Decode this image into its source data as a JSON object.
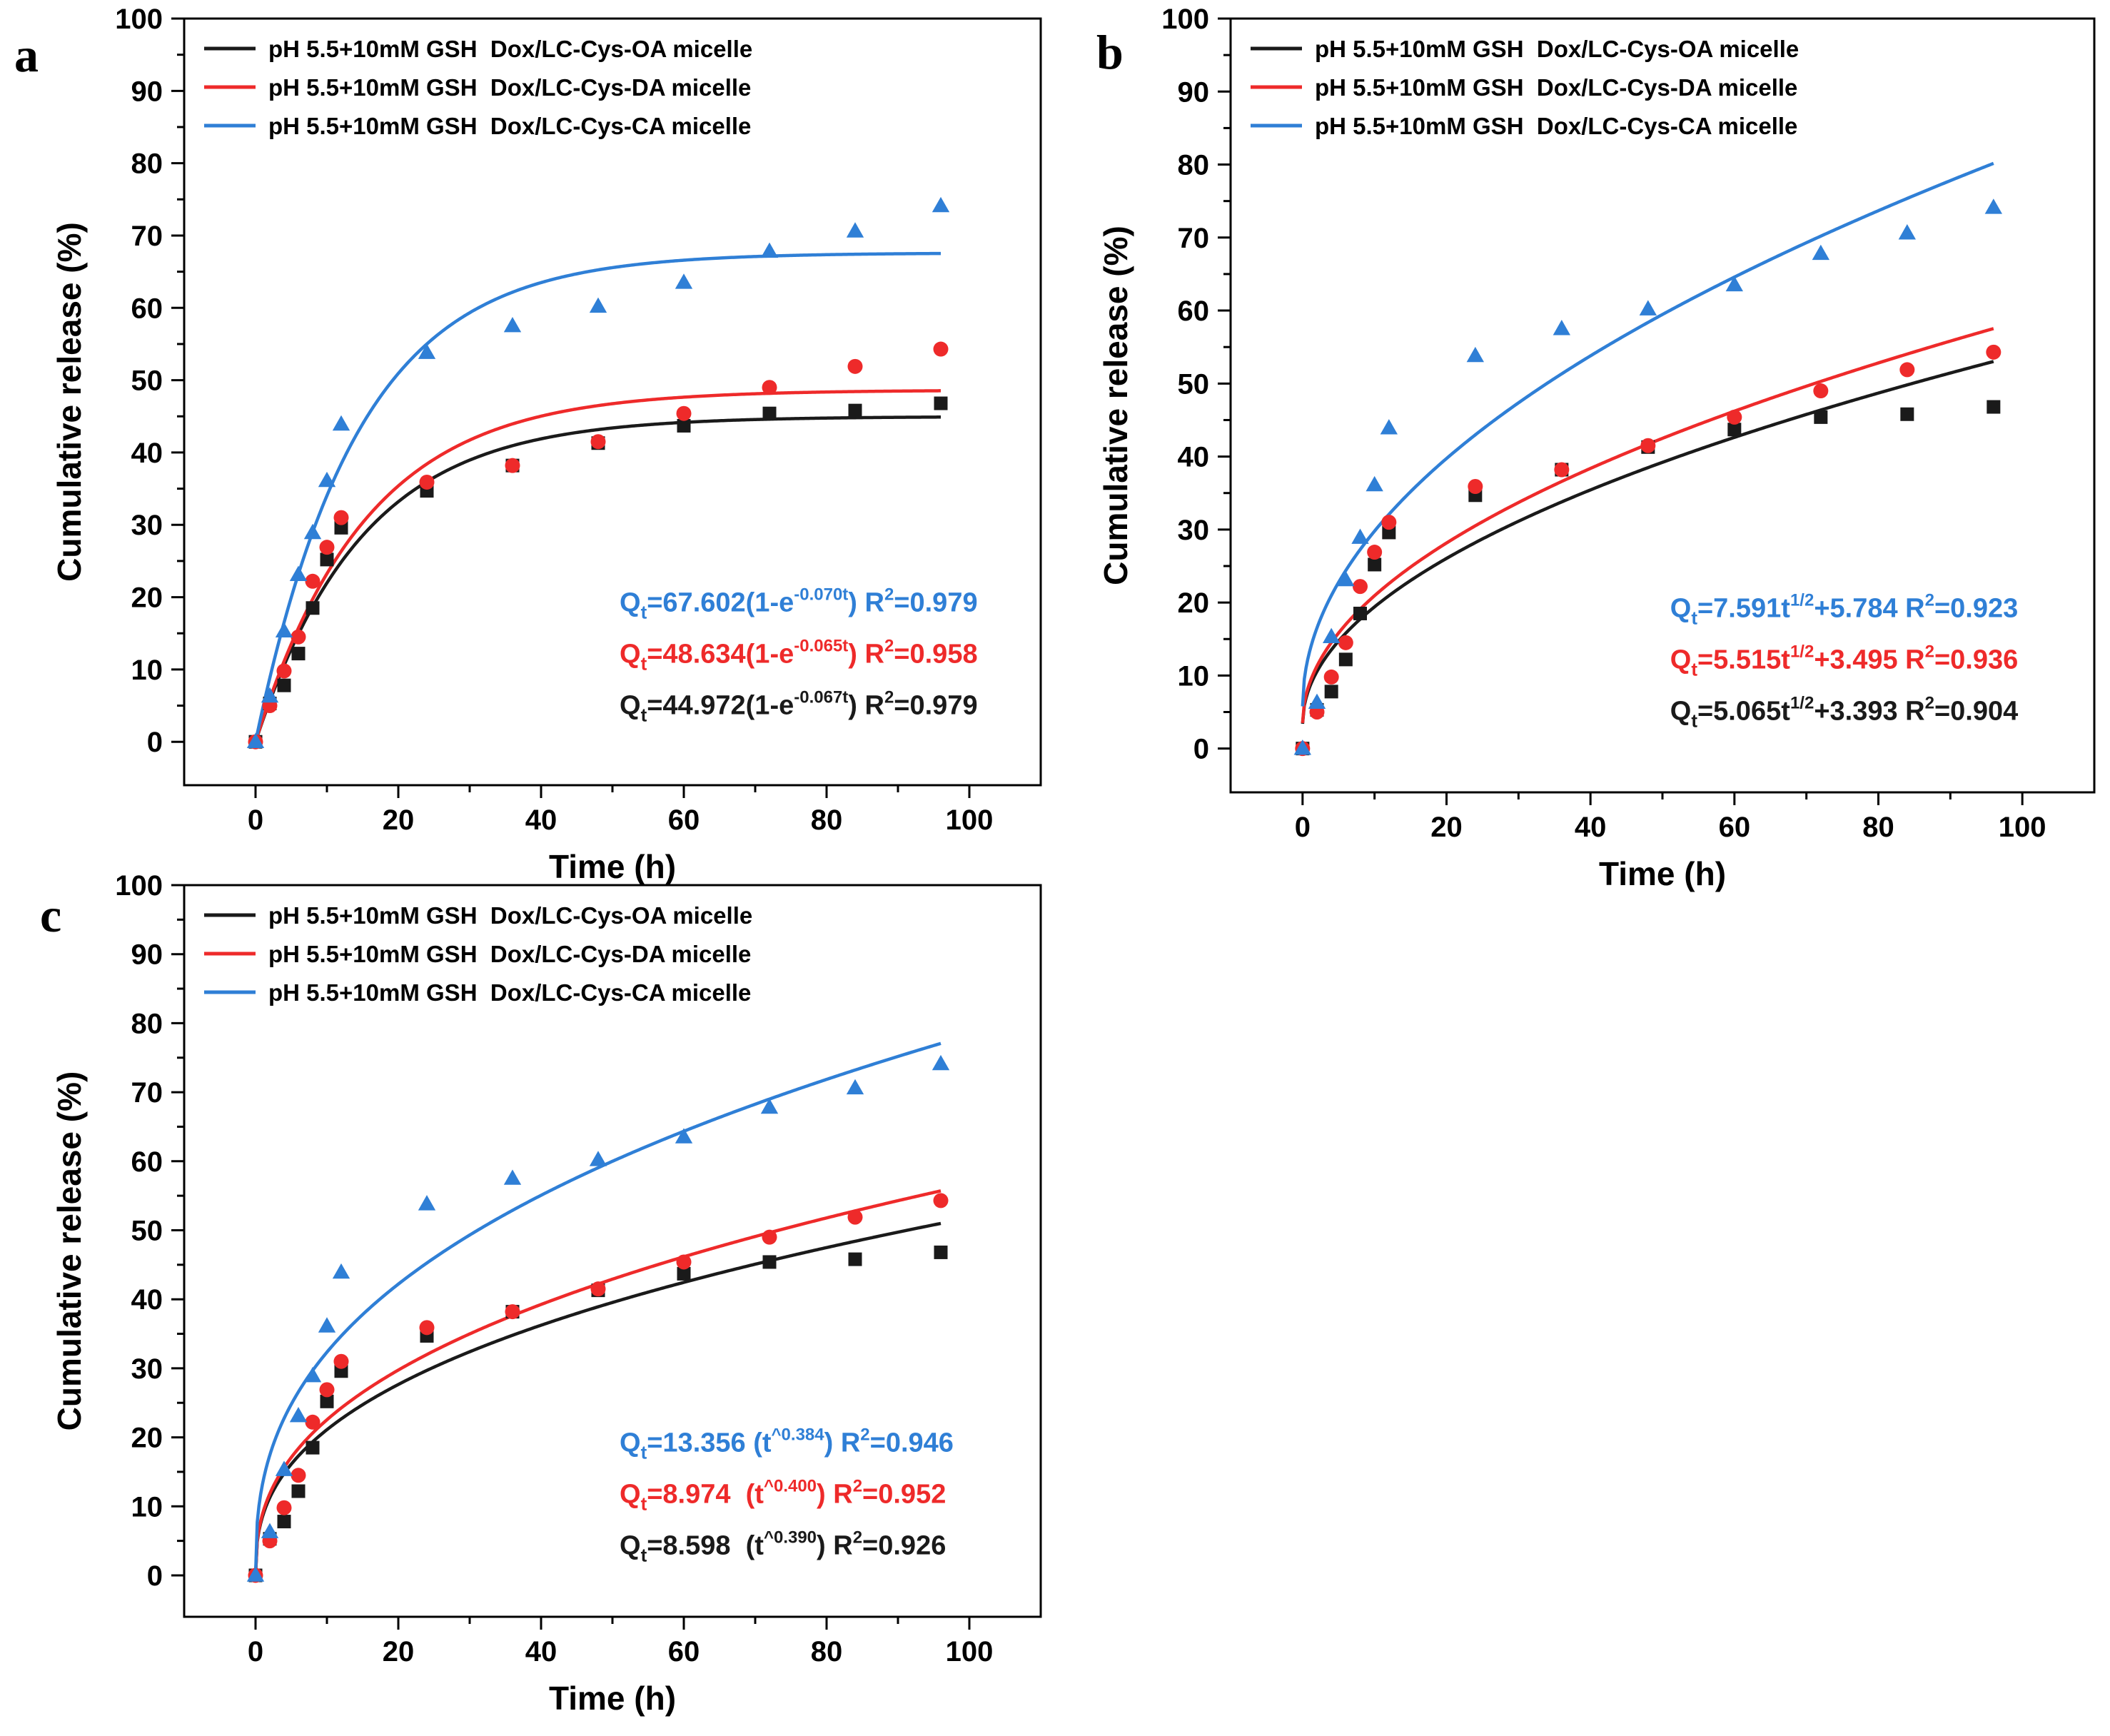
{
  "figure": {
    "colors": {
      "OA": "#1a1a1a",
      "DA": "#ee2a2a",
      "CA": "#2f7fd6"
    }
  },
  "chart_data": [
    {
      "panel": "a",
      "type": "scatter",
      "model": "first-order",
      "xlabel": "Time (h)",
      "ylabel": "Cumulative release (%)",
      "xlim": [
        -10,
        110
      ],
      "ylim": [
        -6,
        100
      ],
      "xticks": [
        0,
        20,
        40,
        60,
        80,
        100
      ],
      "yticks": [
        0,
        10,
        20,
        30,
        40,
        50,
        60,
        70,
        80,
        90,
        100
      ],
      "legend_position": "top-left",
      "series": [
        {
          "key": "OA",
          "name": "pH 5.5+10mM GSH  Dox/LC-Cys-OA micelle",
          "marker": "square",
          "x": [
            0,
            2,
            4,
            6,
            8,
            10,
            12,
            24,
            36,
            48,
            60,
            72,
            84,
            96
          ],
          "y": [
            0,
            5.3,
            7.8,
            12.2,
            18.5,
            25.2,
            29.6,
            34.7,
            38.2,
            41.3,
            43.7,
            45.4,
            45.8,
            46.8
          ],
          "fit": {
            "a": 44.972,
            "k": 0.067
          }
        },
        {
          "key": "DA",
          "name": "pH 5.5+10mM GSH  Dox/LC-Cys-DA micelle",
          "marker": "circle",
          "x": [
            0,
            2,
            4,
            6,
            8,
            10,
            12,
            24,
            36,
            48,
            60,
            72,
            84,
            96
          ],
          "y": [
            0,
            5.0,
            9.8,
            14.5,
            22.2,
            26.9,
            31.0,
            35.9,
            38.2,
            41.5,
            45.4,
            49.0,
            51.9,
            54.3
          ],
          "fit": {
            "a": 48.634,
            "k": 0.065
          }
        },
        {
          "key": "CA",
          "name": "pH 5.5+10mM GSH  Dox/LC-Cys-CA micelle",
          "marker": "triangle",
          "x": [
            0,
            2,
            4,
            6,
            8,
            10,
            12,
            24,
            36,
            48,
            60,
            72,
            84,
            96
          ],
          "y": [
            0,
            6.3,
            15.3,
            23.1,
            28.9,
            36.1,
            43.9,
            53.8,
            57.5,
            60.2,
            63.5,
            67.8,
            70.6,
            74.1
          ],
          "fit": {
            "a": 67.602,
            "k": 0.07
          }
        }
      ],
      "equations": [
        {
          "key": "CA",
          "q": "Q",
          "sub": "t",
          "pre": "=67.602(1-e",
          "sup": "-0.070t",
          "post": ") R",
          "r2sup": "2",
          "r2": "=0.979"
        },
        {
          "key": "DA",
          "q": "Q",
          "sub": "t",
          "pre": "=48.634(1-e",
          "sup": "-0.065t",
          "post": ") R",
          "r2sup": "2",
          "r2": "=0.958"
        },
        {
          "key": "OA",
          "q": "Q",
          "sub": "t",
          "pre": "=44.972(1-e",
          "sup": "-0.067t",
          "post": ") R",
          "r2sup": "2",
          "r2": "=0.979"
        }
      ]
    },
    {
      "panel": "b",
      "type": "scatter",
      "model": "higuchi",
      "xlabel": "Time (h)",
      "ylabel": "Cumulative release (%)",
      "xlim": [
        -10,
        110
      ],
      "ylim": [
        -6,
        100
      ],
      "xticks": [
        0,
        20,
        40,
        60,
        80,
        100
      ],
      "yticks": [
        0,
        10,
        20,
        30,
        40,
        50,
        60,
        70,
        80,
        90,
        100
      ],
      "legend_position": "top-left",
      "series": [
        {
          "key": "OA",
          "name": "pH 5.5+10mM GSH  Dox/LC-Cys-OA micelle",
          "marker": "square",
          "x": [
            0,
            2,
            4,
            6,
            8,
            10,
            12,
            24,
            36,
            48,
            60,
            72,
            84,
            96
          ],
          "y": [
            0,
            5.3,
            7.8,
            12.2,
            18.5,
            25.2,
            29.6,
            34.7,
            38.2,
            41.3,
            43.7,
            45.4,
            45.8,
            46.8
          ],
          "fit": {
            "a": 5.065,
            "b": 3.393
          }
        },
        {
          "key": "DA",
          "name": "pH 5.5+10mM GSH  Dox/LC-Cys-DA micelle",
          "marker": "circle",
          "x": [
            0,
            2,
            4,
            6,
            8,
            10,
            12,
            24,
            36,
            48,
            60,
            72,
            84,
            96
          ],
          "y": [
            0,
            5.0,
            9.8,
            14.5,
            22.2,
            26.9,
            31.0,
            35.9,
            38.2,
            41.5,
            45.4,
            49.0,
            51.9,
            54.3
          ],
          "fit": {
            "a": 5.515,
            "b": 3.495
          }
        },
        {
          "key": "CA",
          "name": "pH 5.5+10mM GSH  Dox/LC-Cys-CA micelle",
          "marker": "triangle",
          "x": [
            0,
            2,
            4,
            6,
            8,
            10,
            12,
            24,
            36,
            48,
            60,
            72,
            84,
            96
          ],
          "y": [
            0,
            6.3,
            15.3,
            23.1,
            28.9,
            36.1,
            43.9,
            53.8,
            57.5,
            60.2,
            63.5,
            67.8,
            70.6,
            74.1
          ],
          "fit": {
            "a": 7.591,
            "b": 5.784
          }
        }
      ],
      "equations": [
        {
          "key": "CA",
          "q": "Q",
          "sub": "t",
          "pre": "=7.591t",
          "sup": "1/2",
          "post": "+5.784 R",
          "r2sup": "2",
          "r2": "=0.923"
        },
        {
          "key": "DA",
          "q": "Q",
          "sub": "t",
          "pre": "=5.515t",
          "sup": "1/2",
          "post": "+3.495 R",
          "r2sup": "2",
          "r2": "=0.936"
        },
        {
          "key": "OA",
          "q": "Q",
          "sub": "t",
          "pre": "=5.065t",
          "sup": "1/2",
          "post": "+3.393 R",
          "r2sup": "2",
          "r2": "=0.904"
        }
      ]
    },
    {
      "panel": "c",
      "type": "scatter",
      "model": "power",
      "xlabel": "Time (h)",
      "ylabel": "Cumulative release (%)",
      "xlim": [
        -10,
        110
      ],
      "ylim": [
        -6,
        100
      ],
      "xticks": [
        0,
        20,
        40,
        60,
        80,
        100
      ],
      "yticks": [
        0,
        10,
        20,
        30,
        40,
        50,
        60,
        70,
        80,
        90,
        100
      ],
      "legend_position": "top-left",
      "series": [
        {
          "key": "OA",
          "name": "pH 5.5+10mM GSH  Dox/LC-Cys-OA micelle",
          "marker": "square",
          "x": [
            0,
            2,
            4,
            6,
            8,
            10,
            12,
            24,
            36,
            48,
            60,
            72,
            84,
            96
          ],
          "y": [
            0,
            5.3,
            7.8,
            12.2,
            18.5,
            25.2,
            29.6,
            34.7,
            38.2,
            41.3,
            43.7,
            45.4,
            45.8,
            46.8
          ],
          "fit": {
            "a": 8.598,
            "n": 0.39
          }
        },
        {
          "key": "DA",
          "name": "pH 5.5+10mM GSH  Dox/LC-Cys-DA micelle",
          "marker": "circle",
          "x": [
            0,
            2,
            4,
            6,
            8,
            10,
            12,
            24,
            36,
            48,
            60,
            72,
            84,
            96
          ],
          "y": [
            0,
            5.0,
            9.8,
            14.5,
            22.2,
            26.9,
            31.0,
            35.9,
            38.2,
            41.5,
            45.4,
            49.0,
            51.9,
            54.3
          ],
          "fit": {
            "a": 8.974,
            "n": 0.4
          }
        },
        {
          "key": "CA",
          "name": "pH 5.5+10mM GSH  Dox/LC-Cys-CA micelle",
          "marker": "triangle",
          "x": [
            0,
            2,
            4,
            6,
            8,
            10,
            12,
            24,
            36,
            48,
            60,
            72,
            84,
            96
          ],
          "y": [
            0,
            6.3,
            15.3,
            23.1,
            28.9,
            36.1,
            43.9,
            53.8,
            57.5,
            60.2,
            63.5,
            67.8,
            70.6,
            74.1
          ],
          "fit": {
            "a": 13.356,
            "n": 0.384
          }
        }
      ],
      "equations": [
        {
          "key": "CA",
          "q": "Q",
          "sub": "t",
          "pre": "=13.356 (t",
          "sup": "^0.384",
          "post": ") R",
          "r2sup": "2",
          "r2": "=0.946"
        },
        {
          "key": "DA",
          "q": "Q",
          "sub": "t",
          "pre": "=8.974  (t",
          "sup": "^0.400",
          "post": ") R",
          "r2sup": "2",
          "r2": "=0.952"
        },
        {
          "key": "OA",
          "q": "Q",
          "sub": "t",
          "pre": "=8.598  (t",
          "sup": "^0.390",
          "post": ") R",
          "r2sup": "2",
          "r2": "=0.926"
        }
      ]
    }
  ]
}
